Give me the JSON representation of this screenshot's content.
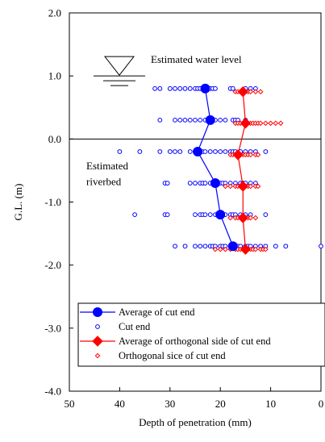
{
  "chart_data": {
    "type": "scatter",
    "xlabel": "Depth of penetration (mm)",
    "ylabel": "G.L. (m)",
    "xlim": [
      50,
      0
    ],
    "ylim": [
      -4.0,
      2.0
    ],
    "x_ticks": [
      "50",
      "40",
      "30",
      "20",
      "10",
      "0"
    ],
    "y_ticks": [
      "2.0",
      "1.0",
      "0.0",
      "-1.0",
      "-2.0",
      "-3.0",
      "-4.0"
    ],
    "legend_position": "lower-center",
    "annotations": {
      "water_level": "Estimated water level",
      "riverbed_line1": "Estimated",
      "riverbed_line2": "riverbed"
    },
    "reference_lines": {
      "water_level_gl": 1.0,
      "riverbed_gl": 0.0
    },
    "colors": {
      "cut": "#0000ff",
      "orthogonal": "#ff0000"
    },
    "series": [
      {
        "name": "Average of cut end",
        "marker": "large-filled-circle",
        "connected": true,
        "points": [
          [
            23,
            0.8
          ],
          [
            22,
            0.3
          ],
          [
            24.5,
            -0.2
          ],
          [
            21,
            -0.7
          ],
          [
            20,
            -1.2
          ],
          [
            17.5,
            -1.7
          ]
        ]
      },
      {
        "name": "Cut end",
        "marker": "small-open-circle",
        "connected": false,
        "points": [
          [
            33,
            0.8
          ],
          [
            32,
            0.8
          ],
          [
            30,
            0.8
          ],
          [
            29,
            0.8
          ],
          [
            28,
            0.8
          ],
          [
            27,
            0.8
          ],
          [
            26,
            0.8
          ],
          [
            25,
            0.8
          ],
          [
            24.5,
            0.8
          ],
          [
            24,
            0.8
          ],
          [
            23,
            0.8
          ],
          [
            22,
            0.8
          ],
          [
            21.5,
            0.8
          ],
          [
            21,
            0.8
          ],
          [
            18,
            0.8
          ],
          [
            17.5,
            0.8
          ],
          [
            15,
            0.8
          ],
          [
            14,
            0.8
          ],
          [
            13,
            0.8
          ],
          [
            32,
            0.3
          ],
          [
            29,
            0.3
          ],
          [
            28,
            0.3
          ],
          [
            27,
            0.3
          ],
          [
            26,
            0.3
          ],
          [
            25,
            0.3
          ],
          [
            24,
            0.3
          ],
          [
            23,
            0.3
          ],
          [
            22,
            0.3
          ],
          [
            21,
            0.3
          ],
          [
            20,
            0.3
          ],
          [
            19,
            0.3
          ],
          [
            17.5,
            0.3
          ],
          [
            17,
            0.3
          ],
          [
            16.5,
            0.3
          ],
          [
            15,
            0.3
          ],
          [
            40,
            -0.2
          ],
          [
            36,
            -0.2
          ],
          [
            32,
            -0.2
          ],
          [
            30,
            -0.2
          ],
          [
            29,
            -0.2
          ],
          [
            28,
            -0.2
          ],
          [
            26,
            -0.2
          ],
          [
            25,
            -0.2
          ],
          [
            24,
            -0.2
          ],
          [
            23.5,
            -0.2
          ],
          [
            23,
            -0.2
          ],
          [
            22,
            -0.2
          ],
          [
            21,
            -0.2
          ],
          [
            20,
            -0.2
          ],
          [
            19,
            -0.2
          ],
          [
            18,
            -0.2
          ],
          [
            17.5,
            -0.2
          ],
          [
            17,
            -0.2
          ],
          [
            16,
            -0.2
          ],
          [
            15,
            -0.2
          ],
          [
            14,
            -0.2
          ],
          [
            13,
            -0.2
          ],
          [
            11,
            -0.2
          ],
          [
            31,
            -0.7
          ],
          [
            30.5,
            -0.7
          ],
          [
            26,
            -0.7
          ],
          [
            25,
            -0.7
          ],
          [
            24,
            -0.7
          ],
          [
            23.5,
            -0.7
          ],
          [
            23,
            -0.7
          ],
          [
            22,
            -0.7
          ],
          [
            21.5,
            -0.7
          ],
          [
            21,
            -0.7
          ],
          [
            20,
            -0.7
          ],
          [
            19.5,
            -0.7
          ],
          [
            19,
            -0.7
          ],
          [
            18,
            -0.7
          ],
          [
            17,
            -0.7
          ],
          [
            16,
            -0.7
          ],
          [
            15.5,
            -0.7
          ],
          [
            15,
            -0.7
          ],
          [
            14,
            -0.7
          ],
          [
            13,
            -0.7
          ],
          [
            37,
            -1.2
          ],
          [
            31,
            -1.2
          ],
          [
            30.5,
            -1.2
          ],
          [
            25,
            -1.2
          ],
          [
            24,
            -1.2
          ],
          [
            23.5,
            -1.2
          ],
          [
            23,
            -1.2
          ],
          [
            22,
            -1.2
          ],
          [
            21,
            -1.2
          ],
          [
            20.5,
            -1.2
          ],
          [
            19.5,
            -1.2
          ],
          [
            19,
            -1.2
          ],
          [
            18,
            -1.2
          ],
          [
            17.5,
            -1.2
          ],
          [
            17,
            -1.2
          ],
          [
            16,
            -1.2
          ],
          [
            15,
            -1.2
          ],
          [
            14,
            -1.2
          ],
          [
            11,
            -1.2
          ],
          [
            29,
            -1.7
          ],
          [
            27,
            -1.7
          ],
          [
            25,
            -1.7
          ],
          [
            24,
            -1.7
          ],
          [
            23,
            -1.7
          ],
          [
            22,
            -1.7
          ],
          [
            21.5,
            -1.7
          ],
          [
            21,
            -1.7
          ],
          [
            20,
            -1.7
          ],
          [
            19.5,
            -1.7
          ],
          [
            19,
            -1.7
          ],
          [
            18,
            -1.7
          ],
          [
            17,
            -1.7
          ],
          [
            16.5,
            -1.7
          ],
          [
            16,
            -1.7
          ],
          [
            15,
            -1.7
          ],
          [
            14.5,
            -1.7
          ],
          [
            14,
            -1.7
          ],
          [
            13,
            -1.7
          ],
          [
            12,
            -1.7
          ],
          [
            11,
            -1.7
          ],
          [
            9,
            -1.7
          ],
          [
            7,
            -1.7
          ],
          [
            0,
            -1.7
          ]
        ]
      },
      {
        "name": "Average of orthogonal side of cut end",
        "marker": "large-filled-diamond",
        "connected": true,
        "points": [
          [
            15.5,
            0.75
          ],
          [
            15,
            0.25
          ],
          [
            16.5,
            -0.25
          ],
          [
            15.5,
            -0.75
          ],
          [
            15.5,
            -1.25
          ],
          [
            15,
            -1.75
          ]
        ]
      },
      {
        "name": "Orthogonal sice of cut end",
        "marker": "small-open-diamond",
        "connected": false,
        "points": [
          [
            17,
            0.75
          ],
          [
            16.5,
            0.75
          ],
          [
            16,
            0.75
          ],
          [
            15,
            0.75
          ],
          [
            14.5,
            0.75
          ],
          [
            14,
            0.75
          ],
          [
            13,
            0.75
          ],
          [
            12,
            0.75
          ],
          [
            17,
            0.25
          ],
          [
            16.5,
            0.25
          ],
          [
            16,
            0.25
          ],
          [
            15.5,
            0.25
          ],
          [
            14.5,
            0.25
          ],
          [
            14,
            0.25
          ],
          [
            13.5,
            0.25
          ],
          [
            13,
            0.25
          ],
          [
            12.5,
            0.25
          ],
          [
            12,
            0.25
          ],
          [
            11,
            0.25
          ],
          [
            10,
            0.25
          ],
          [
            9,
            0.25
          ],
          [
            8,
            0.25
          ],
          [
            18,
            -0.25
          ],
          [
            17.5,
            -0.25
          ],
          [
            17,
            -0.25
          ],
          [
            16,
            -0.25
          ],
          [
            15.5,
            -0.25
          ],
          [
            15,
            -0.25
          ],
          [
            14.5,
            -0.25
          ],
          [
            14,
            -0.25
          ],
          [
            13,
            -0.25
          ],
          [
            12.5,
            -0.25
          ],
          [
            19,
            -0.75
          ],
          [
            18,
            -0.75
          ],
          [
            17,
            -0.75
          ],
          [
            16.5,
            -0.75
          ],
          [
            16,
            -0.75
          ],
          [
            15,
            -0.75
          ],
          [
            14.5,
            -0.75
          ],
          [
            14,
            -0.75
          ],
          [
            13,
            -0.75
          ],
          [
            12.5,
            -0.75
          ],
          [
            18,
            -1.25
          ],
          [
            17,
            -1.25
          ],
          [
            16.5,
            -1.25
          ],
          [
            16,
            -1.25
          ],
          [
            15,
            -1.25
          ],
          [
            14.5,
            -1.25
          ],
          [
            14,
            -1.25
          ],
          [
            13,
            -1.25
          ],
          [
            21,
            -1.75
          ],
          [
            20,
            -1.75
          ],
          [
            19,
            -1.75
          ],
          [
            18,
            -1.75
          ],
          [
            17,
            -1.75
          ],
          [
            16.5,
            -1.75
          ],
          [
            16,
            -1.75
          ],
          [
            15.5,
            -1.75
          ],
          [
            15,
            -1.75
          ],
          [
            14.5,
            -1.75
          ],
          [
            14,
            -1.75
          ],
          [
            13.5,
            -1.75
          ],
          [
            13,
            -1.75
          ],
          [
            12,
            -1.75
          ],
          [
            11.5,
            -1.75
          ],
          [
            11,
            -1.75
          ]
        ]
      }
    ]
  }
}
